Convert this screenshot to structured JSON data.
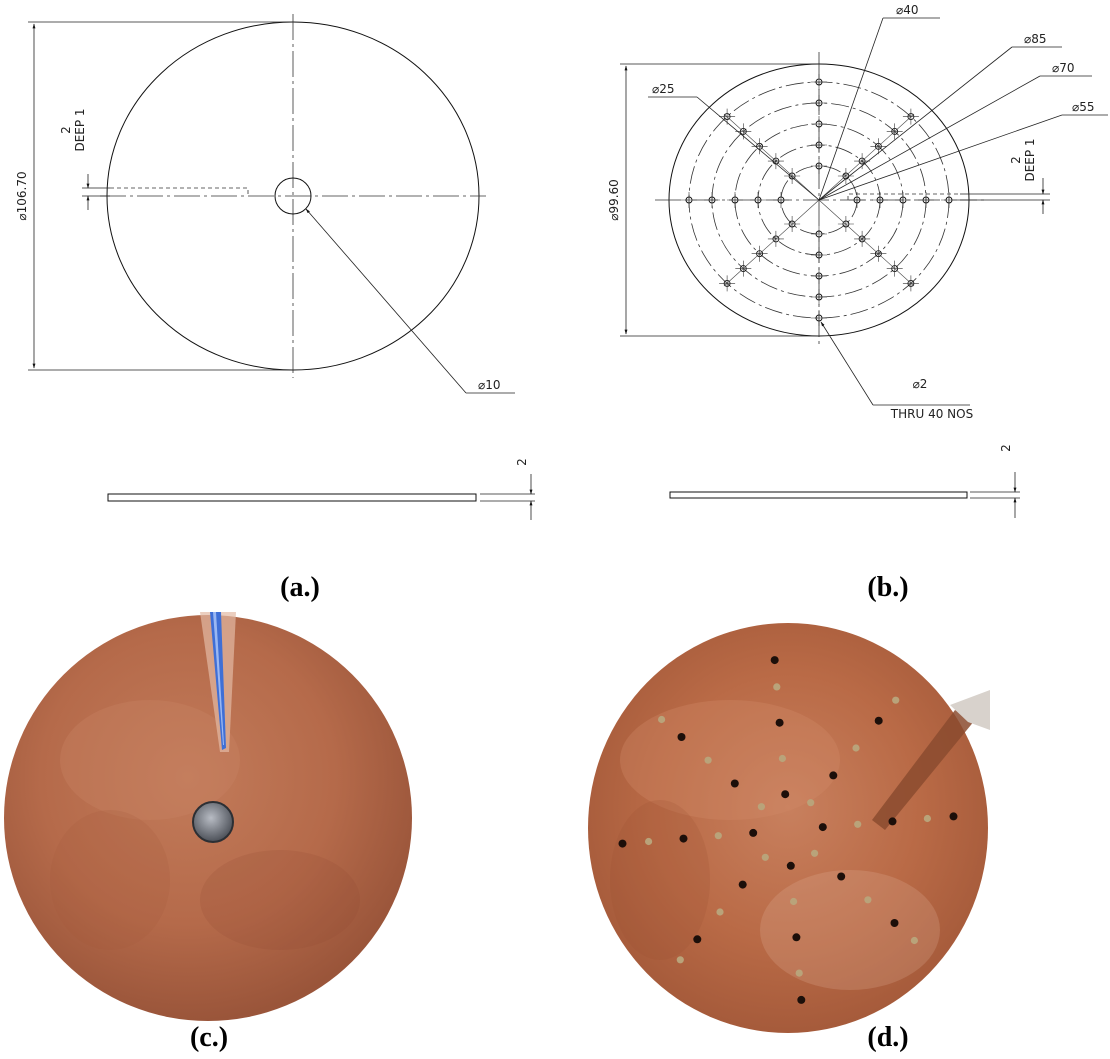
{
  "panels": {
    "a": {
      "caption": "(a.)",
      "outer_diameter": "⌀106.70",
      "groove_depth_top": "2",
      "groove_depth_bottom": "DEEP 1",
      "center_hole": "⌀10",
      "thickness": "2"
    },
    "b": {
      "caption": "(b.)",
      "outer_diameter": "⌀99.60",
      "pcd_labels": [
        "⌀40",
        "⌀85",
        "⌀70",
        "⌀55",
        "⌀25"
      ],
      "groove_depth_top": "2",
      "groove_depth_bottom": "DEEP 1",
      "hole_size": "⌀2",
      "hole_note": "THRU 40 NOS",
      "thickness": "2"
    },
    "c": {
      "caption": "(c.)"
    },
    "d": {
      "caption": "(d.)"
    }
  },
  "colors": {
    "copper": "#b86a48",
    "copper_dark": "#8f4a30",
    "wire_blue": "#3f6fd6",
    "line": "#111111"
  }
}
